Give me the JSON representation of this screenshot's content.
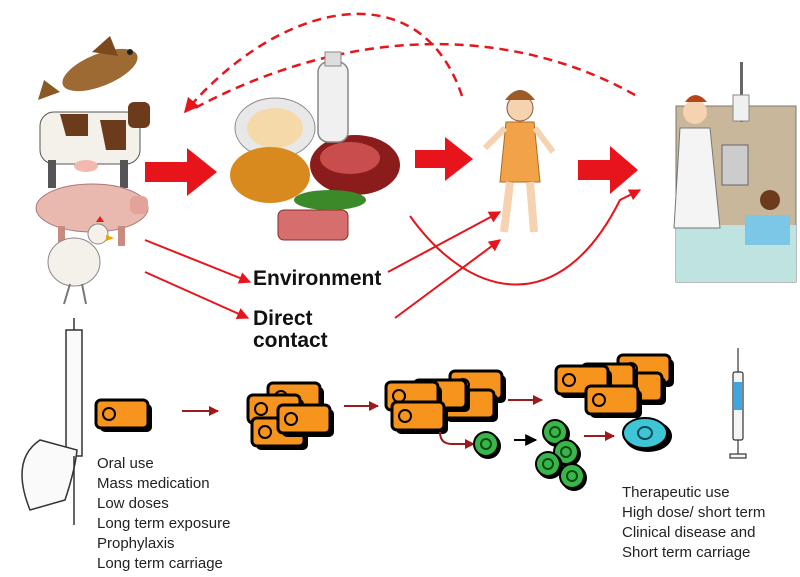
{
  "labels": {
    "environment": "Environment",
    "direct_contact_line1": "Direct",
    "direct_contact_line2": "contact"
  },
  "left_list": [
    "Oral use",
    "Mass medication",
    "Low doses",
    "Long term exposure",
    "Prophylaxis",
    "Long term carriage"
  ],
  "right_list": [
    "Therapeutic use",
    "High dose/ short term",
    "Clinical disease and",
    "Short term carriage"
  ],
  "colors": {
    "red_arrow": "#e8141b",
    "dark_red_arrow": "#9a1b1b",
    "bacteria_orange": "#f7941d",
    "bacteria_green": "#3ab54a",
    "bacteria_cyan": "#3fc6d6"
  },
  "icons": [
    "fish-icon",
    "cow-icon",
    "pig-icon",
    "chicken-icon",
    "food-plate-icon",
    "milk-bottle-icon",
    "child-icon",
    "hospital-scene-icon",
    "drench-gun-icon",
    "syringe-icon"
  ]
}
